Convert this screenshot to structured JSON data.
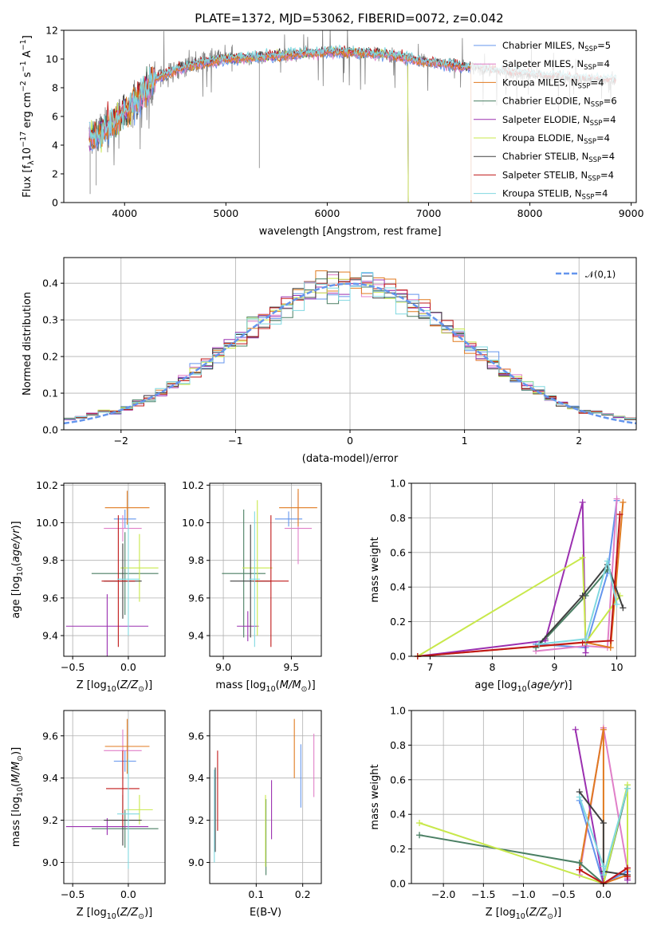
{
  "figure": {
    "title": "PLATE=1372, MJD=53062, FIBERID=0072, z=0.042"
  },
  "colors": {
    "data": "#808080",
    "series": [
      "#6495ed",
      "#e07fc8",
      "#e07a1f",
      "#4a7f63",
      "#9b30b0",
      "#c8e84b",
      "#404040",
      "#c01818",
      "#80d8e0"
    ]
  },
  "chart_data": [
    {
      "id": "spectrum",
      "type": "line",
      "xlabel": "wavelength [Angstrom, rest frame]",
      "ylabel": "Flux [f_λ 10^-17 erg cm^-2 s^-1 A^-1]",
      "xlim": [
        3400,
        9050
      ],
      "ylim": [
        0,
        12
      ],
      "xticks": [
        4000,
        5000,
        6000,
        7000,
        8000,
        9000
      ],
      "yticks": [
        0,
        2,
        4,
        6,
        8,
        10,
        12
      ],
      "legend_position": "top-right",
      "legend": [
        {
          "pre": "Chabrier MILES, N",
          "sub": "SSP",
          "post": "=5"
        },
        {
          "pre": "Salpeter MILES, N",
          "sub": "SSP",
          "post": "=4"
        },
        {
          "pre": "Kroupa MILES, N",
          "sub": "SSP",
          "post": "=4"
        },
        {
          "pre": "Chabrier ELODIE, N",
          "sub": "SSP",
          "post": "=6"
        },
        {
          "pre": "Salpeter ELODIE, N",
          "sub": "SSP",
          "post": "=4"
        },
        {
          "pre": "Kroupa ELODIE, N",
          "sub": "SSP",
          "post": "=4"
        },
        {
          "pre": "Chabrier STELIB, N",
          "sub": "SSP",
          "post": "=4"
        },
        {
          "pre": "Salpeter STELIB, N",
          "sub": "SSP",
          "post": "=4"
        },
        {
          "pre": "Kroupa STELIB, N",
          "sub": "SSP",
          "post": "=4"
        }
      ],
      "data_range": [
        3650,
        8850
      ],
      "continuum": [
        [
          3650,
          4.5
        ],
        [
          3900,
          5.5
        ],
        [
          4100,
          7.0
        ],
        [
          4300,
          8.6
        ],
        [
          4600,
          9.5
        ],
        [
          5000,
          10.0
        ],
        [
          5500,
          10.2
        ],
        [
          6000,
          10.5
        ],
        [
          6500,
          10.4
        ],
        [
          7000,
          9.8
        ],
        [
          7500,
          9.3
        ],
        [
          8000,
          8.9
        ],
        [
          8500,
          8.6
        ],
        [
          8850,
          8.5
        ]
      ],
      "model_ranges": {
        "miles": [
          3650,
          7420
        ],
        "elodie": [
          3650,
          6800
        ],
        "stelib": [
          3650,
          8850
        ]
      }
    },
    {
      "id": "residuals",
      "type": "histogram",
      "xlabel": "(data-model)/error",
      "ylabel": "Normed distribution",
      "xlim": [
        -2.5,
        2.5
      ],
      "ylim": [
        0,
        0.47
      ],
      "xticks": [
        -2,
        -1,
        0,
        1,
        2
      ],
      "yticks": [
        0,
        0.1,
        0.2,
        0.3,
        0.4
      ],
      "grid": true,
      "bin_width": 0.1,
      "legend_position": "top-right",
      "reference_label": "𝒩(0,1)",
      "reference_color": "#6495ed"
    },
    {
      "id": "age-vs-Z",
      "type": "errorbar",
      "xlabel": "Z [log10(Z/Z⊙)]",
      "ylabel": "age [log10(age/yr)]",
      "xlim": [
        -0.58,
        0.33
      ],
      "ylim": [
        9.29,
        10.21
      ],
      "xticks": [
        -0.5,
        0.0
      ],
      "yticks": [
        9.4,
        9.6,
        9.8,
        10.0,
        10.2
      ],
      "grid": true,
      "points": [
        {
          "s": 0,
          "x": -0.03,
          "xerr": 0.1,
          "y": 10.02,
          "yerr": 0.05
        },
        {
          "s": 1,
          "x": -0.05,
          "xerr": 0.17,
          "y": 9.97,
          "yerr": 0.07
        },
        {
          "s": 2,
          "x": -0.01,
          "xerr": 0.2,
          "y": 10.08,
          "yerr": 0.09
        },
        {
          "s": 3,
          "x": -0.03,
          "xerr": 0.3,
          "y": 9.73,
          "yerr": 0.22
        },
        {
          "s": 4,
          "x": -0.19,
          "xerr": 0.37,
          "y": 9.45,
          "yerr": 0.17
        },
        {
          "s": 5,
          "x": 0.1,
          "xerr": 0.17,
          "y": 9.76,
          "yerr": 0.18
        },
        {
          "s": 6,
          "x": -0.05,
          "xerr": 0.17,
          "y": 9.69,
          "yerr": 0.2
        },
        {
          "s": 7,
          "x": -0.09,
          "xerr": 0.15,
          "y": 9.69,
          "yerr": 0.35
        },
        {
          "s": 8,
          "x": 0.0,
          "xerr": 0.1,
          "y": 9.7,
          "yerr": 0.3
        }
      ]
    },
    {
      "id": "age-vs-mass",
      "type": "errorbar",
      "xlabel": "mass [log10(M/M⊙)]",
      "ylabel": "",
      "xlim": [
        8.9,
        9.72
      ],
      "ylim": [
        9.29,
        10.21
      ],
      "xticks": [
        9.0,
        9.5
      ],
      "yticks": [
        9.4,
        9.6,
        9.8,
        10.0,
        10.2
      ],
      "grid": true,
      "points": [
        {
          "s": 0,
          "x": 9.48,
          "xerr": 0.1,
          "y": 10.02,
          "yerr": 0.04
        },
        {
          "s": 1,
          "x": 9.55,
          "xerr": 0.1,
          "y": 9.97,
          "yerr": 0.19
        },
        {
          "s": 2,
          "x": 9.55,
          "xerr": 0.14,
          "y": 10.08,
          "yerr": 0.1
        },
        {
          "s": 3,
          "x": 9.15,
          "xerr": 0.16,
          "y": 9.73,
          "yerr": 0.34
        },
        {
          "s": 4,
          "x": 9.18,
          "xerr": 0.08,
          "y": 9.45,
          "yerr": 0.08
        },
        {
          "s": 5,
          "x": 9.25,
          "xerr": 0.11,
          "y": 9.76,
          "yerr": 0.36
        },
        {
          "s": 6,
          "x": 9.2,
          "xerr": 0.15,
          "y": 9.69,
          "yerr": 0.3
        },
        {
          "s": 7,
          "x": 9.35,
          "xerr": 0.13,
          "y": 9.69,
          "yerr": 0.35
        },
        {
          "s": 8,
          "x": 9.23,
          "xerr": 0.04,
          "y": 9.7,
          "yerr": 0.36
        }
      ]
    },
    {
      "id": "weight-vs-age",
      "type": "line",
      "xlabel": "age [log10(age/yr)]",
      "ylabel": "mass weight",
      "xlim": [
        6.7,
        10.3
      ],
      "ylim": [
        0,
        1.0
      ],
      "xticks": [
        7,
        8,
        9,
        10
      ],
      "yticks": [
        0.0,
        0.2,
        0.4,
        0.6,
        0.8,
        1.0
      ],
      "grid": true,
      "series": [
        {
          "s": 0,
          "x": [
            8.7,
            9.5,
            9.85,
            10.0
          ],
          "y": [
            0.07,
            0.05,
            0.48,
            0.9
          ]
        },
        {
          "s": 1,
          "x": [
            8.7,
            9.5,
            9.85,
            10.0
          ],
          "y": [
            0.03,
            0.06,
            0.05,
            0.91
          ]
        },
        {
          "s": 2,
          "x": [
            6.8,
            9.5,
            9.9,
            10.1
          ],
          "y": [
            0.0,
            0.08,
            0.05,
            0.89
          ]
        },
        {
          "s": 3,
          "x": [
            8.7,
            8.85,
            9.5,
            9.85
          ],
          "y": [
            0.05,
            0.1,
            0.35,
            0.5
          ]
        },
        {
          "s": 4,
          "x": [
            6.8,
            8.85,
            9.45,
            9.5
          ],
          "y": [
            0.0,
            0.09,
            0.89,
            0.02
          ]
        },
        {
          "s": 5,
          "x": [
            6.8,
            9.45,
            9.5,
            10.05
          ],
          "y": [
            0.0,
            0.57,
            0.08,
            0.35
          ]
        },
        {
          "s": 6,
          "x": [
            8.75,
            9.45,
            9.85,
            10.1
          ],
          "y": [
            0.07,
            0.35,
            0.53,
            0.28
          ]
        },
        {
          "s": 7,
          "x": [
            6.8,
            9.45,
            9.9,
            10.05
          ],
          "y": [
            0.0,
            0.08,
            0.09,
            0.82
          ]
        },
        {
          "s": 8,
          "x": [
            8.75,
            9.5,
            9.85,
            10.0
          ],
          "y": [
            0.07,
            0.1,
            0.55,
            0.3
          ]
        }
      ]
    },
    {
      "id": "mass-vs-Z",
      "type": "errorbar",
      "xlabel": "Z [log10(Z/Z⊙)]",
      "ylabel": "mass [log10(M/M⊙)]",
      "xlim": [
        -0.58,
        0.33
      ],
      "ylim": [
        8.9,
        9.72
      ],
      "xticks": [
        -0.5,
        0.0
      ],
      "yticks": [
        9.0,
        9.2,
        9.4,
        9.6
      ],
      "grid": true,
      "points": [
        {
          "s": 0,
          "x": -0.03,
          "xerr": 0.1,
          "y": 9.48,
          "yerr": 0.05
        },
        {
          "s": 1,
          "x": -0.05,
          "xerr": 0.17,
          "y": 9.53,
          "yerr": 0.1
        },
        {
          "s": 2,
          "x": -0.01,
          "xerr": 0.2,
          "y": 9.55,
          "yerr": 0.13
        },
        {
          "s": 3,
          "x": -0.03,
          "xerr": 0.3,
          "y": 9.16,
          "yerr": 0.09
        },
        {
          "s": 4,
          "x": -0.19,
          "xerr": 0.37,
          "y": 9.17,
          "yerr": 0.04
        },
        {
          "s": 5,
          "x": 0.1,
          "xerr": 0.12,
          "y": 9.25,
          "yerr": 0.07
        },
        {
          "s": 6,
          "x": -0.05,
          "xerr": 0.17,
          "y": 9.2,
          "yerr": 0.12
        },
        {
          "s": 7,
          "x": -0.05,
          "xerr": 0.15,
          "y": 9.35,
          "yerr": 0.18
        },
        {
          "s": 8,
          "x": 0.0,
          "xerr": 0.1,
          "y": 9.23,
          "yerr": 0.26
        }
      ]
    },
    {
      "id": "mass-vs-ebv",
      "type": "errorbar",
      "xlabel": "E(B-V)",
      "ylabel": "",
      "xlim": [
        0.0,
        0.24
      ],
      "ylim": [
        8.9,
        9.72
      ],
      "xticks": [
        0.1,
        0.2
      ],
      "yticks": [
        9.0,
        9.2,
        9.4,
        9.6
      ],
      "grid": true,
      "points": [
        {
          "s": 0,
          "x": 0.196,
          "xerr": 0,
          "y": 9.41,
          "yerr": 0.15
        },
        {
          "s": 1,
          "x": 0.224,
          "xerr": 0,
          "y": 9.46,
          "yerr": 0.15
        },
        {
          "s": 2,
          "x": 0.182,
          "xerr": 0,
          "y": 9.54,
          "yerr": 0.14
        },
        {
          "s": 3,
          "x": 0.121,
          "xerr": 0,
          "y": 9.12,
          "yerr": 0.18
        },
        {
          "s": 4,
          "x": 0.133,
          "xerr": 0,
          "y": 9.25,
          "yerr": 0.14
        },
        {
          "s": 5,
          "x": 0.12,
          "xerr": 0,
          "y": 9.15,
          "yerr": 0.17
        },
        {
          "s": 6,
          "x": 0.012,
          "xerr": 0,
          "y": 9.25,
          "yerr": 0.2
        },
        {
          "s": 7,
          "x": 0.017,
          "xerr": 0,
          "y": 9.34,
          "yerr": 0.19
        },
        {
          "s": 8,
          "x": 0.01,
          "xerr": 0,
          "y": 9.22,
          "yerr": 0.22
        }
      ]
    },
    {
      "id": "weight-vs-Z",
      "type": "line",
      "xlabel": "Z [log10(Z/Z⊙)]",
      "ylabel": "mass weight",
      "xlim": [
        -2.4,
        0.4
      ],
      "ylim": [
        0,
        1.0
      ],
      "xticks": [
        -2.0,
        -1.5,
        -1.0,
        -0.5,
        0.0
      ],
      "yticks": [
        0.0,
        0.2,
        0.4,
        0.6,
        0.8,
        1.0
      ],
      "grid": true,
      "series": [
        {
          "s": 0,
          "x": [
            -0.3,
            0.0,
            0.3,
            0.3
          ],
          "y": [
            0.48,
            0.0,
            0.07,
            0.03
          ]
        },
        {
          "s": 1,
          "x": [
            -0.3,
            0.0,
            0.3,
            0.3
          ],
          "y": [
            0.05,
            0.9,
            0.08,
            0.03
          ]
        },
        {
          "s": 2,
          "x": [
            -0.3,
            0.0,
            0.0,
            0.3
          ],
          "y": [
            0.08,
            0.89,
            0.0,
            0.05
          ]
        },
        {
          "s": 3,
          "x": [
            -2.3,
            -0.3,
            0.0,
            0.3
          ],
          "y": [
            0.28,
            0.12,
            0.0,
            0.55
          ]
        },
        {
          "s": 4,
          "x": [
            -0.35,
            0.0,
            0.3,
            0.3
          ],
          "y": [
            0.89,
            0.0,
            0.09,
            0.02
          ]
        },
        {
          "s": 5,
          "x": [
            -2.3,
            0.0,
            0.3,
            0.3
          ],
          "y": [
            0.35,
            0.0,
            0.57,
            0.08
          ]
        },
        {
          "s": 6,
          "x": [
            -0.3,
            0.0,
            0.0,
            0.3
          ],
          "y": [
            0.53,
            0.35,
            0.07,
            0.05
          ]
        },
        {
          "s": 7,
          "x": [
            -0.3,
            0.0,
            0.3,
            0.3
          ],
          "y": [
            0.08,
            0.0,
            0.09,
            0.04
          ]
        },
        {
          "s": 8,
          "x": [
            -0.3,
            0.0,
            0.0,
            0.3
          ],
          "y": [
            0.5,
            0.1,
            0.05,
            0.55
          ]
        }
      ]
    }
  ]
}
